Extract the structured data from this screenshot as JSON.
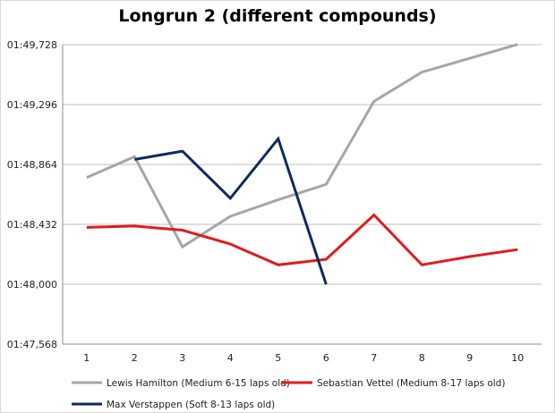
{
  "chart_data": {
    "type": "line",
    "title": "Longrun 2 (different compounds)",
    "xlabel": "",
    "ylabel": "",
    "categories": [
      "1",
      "2",
      "3",
      "4",
      "5",
      "6",
      "7",
      "8",
      "9",
      "10"
    ],
    "y_tick_labels": [
      "01:47,568",
      "01:48,000",
      "01:48,432",
      "01:48,864",
      "01:49,296",
      "01:49,728"
    ],
    "y_tick_values": [
      107.568,
      108.0,
      108.432,
      108.864,
      109.296,
      109.728
    ],
    "ylim": [
      107.568,
      109.728
    ],
    "grid": true,
    "legend_position": "bottom",
    "series": [
      {
        "name": "Lewis Hamilton (Medium 6-15 laps old)",
        "color": "#a6a6a6",
        "values": [
          108.77,
          108.92,
          108.27,
          108.49,
          108.61,
          108.72,
          109.32,
          109.53,
          109.63,
          109.73
        ]
      },
      {
        "name": "Sebastian Vettel (Medium 8-17 laps old)",
        "color": "#e31a1c",
        "values": [
          108.41,
          108.42,
          108.39,
          108.29,
          108.14,
          108.18,
          108.5,
          108.14,
          108.2,
          108.25
        ]
      },
      {
        "name": "Max Verstappen (Soft 8-13 laps old)",
        "color": "#0f2a5e",
        "values": [
          null,
          108.9,
          108.96,
          108.62,
          109.05,
          108.0,
          null,
          null,
          null,
          null
        ]
      }
    ]
  }
}
